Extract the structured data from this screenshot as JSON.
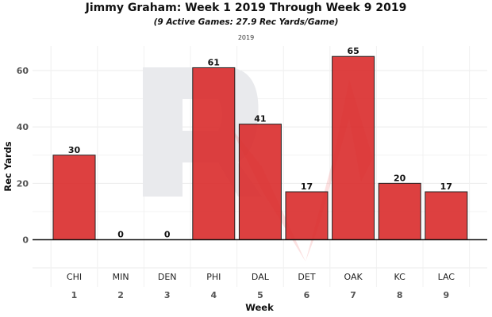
{
  "chart_data": {
    "type": "bar",
    "title": "Jimmy Graham: Week 1 2019 Through Week 9 2019",
    "subtitle": "(9 Active Games: 27.9 Rec Yards/Game)",
    "facet_label": "2019",
    "xlabel": "Week",
    "ylabel": "Rec Yards",
    "categories": [
      "1",
      "2",
      "3",
      "4",
      "5",
      "6",
      "7",
      "8",
      "9"
    ],
    "opponents": [
      "CHI",
      "MIN",
      "DEN",
      "PHI",
      "DAL",
      "DET",
      "OAK",
      "KC",
      "LAC"
    ],
    "values": [
      30,
      0,
      0,
      61,
      41,
      17,
      65,
      20,
      17
    ],
    "ylim": [
      -12,
      70
    ],
    "yticks": [
      0,
      20,
      40,
      60
    ],
    "grid": true,
    "bar_color": "#d92b2b",
    "watermark": "RW"
  }
}
